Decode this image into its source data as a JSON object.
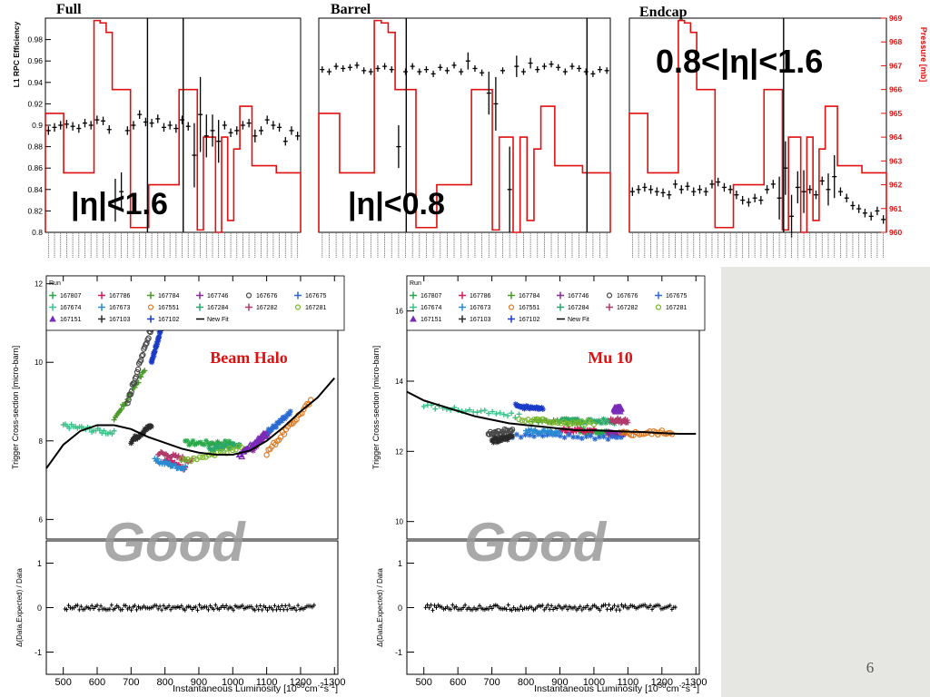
{
  "slide": {
    "page_number": "6",
    "background": "#ffffff",
    "side_panel_color": "#e6e6e2"
  },
  "chart_data": [
    {
      "type": "line",
      "panel": "full",
      "title": "Full",
      "region_label": "|η|<1.6",
      "ylabel": "L1 RPC Efficiency",
      "ylim": [
        0.8,
        1.0
      ],
      "yticks": [
        0.8,
        0.82,
        0.84,
        0.86,
        0.88,
        0.9,
        0.92,
        0.94,
        0.96,
        0.98
      ],
      "pressure_ylim": [
        960,
        969
      ],
      "efficiency": [
        0.895,
        0.898,
        0.9,
        0.901,
        0.899,
        0.897,
        0.902,
        0.9,
        0.905,
        0.904,
        0.896,
        0.83,
        0.838,
        0.895,
        0.9,
        0.91,
        0.903,
        0.902,
        0.906,
        0.898,
        0.9,
        0.897,
        0.905,
        0.899,
        0.872,
        0.91,
        0.89,
        0.895,
        0.885,
        0.9,
        0.893,
        0.895,
        0.9,
        0.902,
        0.89,
        0.895,
        0.905,
        0.9,
        0.898,
        0.885,
        0.895,
        0.89
      ],
      "efficiency_errors": [
        0.004,
        0.004,
        0.004,
        0.004,
        0.004,
        0.004,
        0.004,
        0.004,
        0.004,
        0.004,
        0.004,
        0.02,
        0.018,
        0.004,
        0.004,
        0.004,
        0.004,
        0.004,
        0.004,
        0.004,
        0.004,
        0.004,
        0.004,
        0.004,
        0.03,
        0.035,
        0.02,
        0.015,
        0.02,
        0.004,
        0.004,
        0.004,
        0.004,
        0.004,
        0.006,
        0.004,
        0.004,
        0.004,
        0.004,
        0.004,
        0.004,
        0.004
      ],
      "pressure": [
        965,
        965,
        965,
        962.5,
        962.5,
        962.5,
        962.5,
        962.5,
        968.9,
        968.8,
        968.4,
        966,
        966,
        966,
        960.2,
        960.2,
        960.2,
        962,
        962,
        962,
        962,
        962,
        966,
        966,
        966,
        960.1,
        964,
        964,
        960,
        964,
        960.5,
        963.5,
        965.3,
        965.3,
        962.8,
        962.8,
        962.8,
        962.8,
        962.5,
        962.5,
        962.5,
        962.5
      ],
      "vertical_markers": [
        0.54,
        0.4
      ]
    },
    {
      "type": "line",
      "panel": "barrel",
      "title": "Barrel",
      "region_label": "|η|<0.8",
      "ylim": [
        0.8,
        1.0
      ],
      "pressure_ylim": [
        960,
        969
      ],
      "efficiency": [
        0.952,
        0.95,
        0.955,
        0.953,
        0.954,
        0.956,
        0.951,
        0.95,
        0.953,
        0.955,
        0.952,
        0.88,
        0.95,
        0.955,
        0.95,
        0.952,
        0.948,
        0.954,
        0.951,
        0.956,
        0.95,
        0.96,
        0.953,
        0.949,
        0.93,
        0.92,
        0.951,
        0.84,
        0.955,
        0.95,
        0.958,
        0.952,
        0.955,
        0.957,
        0.954,
        0.95,
        0.955,
        0.953,
        0.95,
        0.948,
        0.952,
        0.951
      ],
      "efficiency_errors": [
        0.003,
        0.003,
        0.003,
        0.003,
        0.003,
        0.003,
        0.003,
        0.003,
        0.003,
        0.003,
        0.003,
        0.02,
        0.003,
        0.003,
        0.003,
        0.003,
        0.003,
        0.003,
        0.003,
        0.003,
        0.003,
        0.008,
        0.003,
        0.003,
        0.02,
        0.025,
        0.003,
        0.04,
        0.01,
        0.003,
        0.005,
        0.003,
        0.003,
        0.003,
        0.003,
        0.003,
        0.003,
        0.003,
        0.003,
        0.003,
        0.003,
        0.003
      ],
      "pressure": [
        965,
        965,
        965,
        962.5,
        962.5,
        962.5,
        962.5,
        962.5,
        968.9,
        968.8,
        968.4,
        966,
        966,
        966,
        960.2,
        960.2,
        960.2,
        962,
        962,
        962,
        962,
        962,
        966,
        966,
        966,
        960.1,
        964,
        964,
        960,
        964,
        960.5,
        963.5,
        965.3,
        965.3,
        962.8,
        962.8,
        962.8,
        962.8,
        962.5,
        962.5,
        962.5,
        962.5
      ],
      "vertical_markers": [
        0.3,
        0.92
      ]
    },
    {
      "type": "line",
      "panel": "endcap",
      "title": "Endcap",
      "region_label": "0.8<|η|<1.6",
      "ylabel_right": "Pressure [mb]",
      "ylim": [
        0.8,
        1.0
      ],
      "pressure_ylim": [
        960,
        969
      ],
      "pressure_ticks": [
        960,
        961,
        962,
        963,
        964,
        965,
        966,
        967,
        968,
        969
      ],
      "efficiency": [
        0.838,
        0.84,
        0.842,
        0.84,
        0.838,
        0.837,
        0.835,
        0.845,
        0.84,
        0.843,
        0.838,
        0.84,
        0.838,
        0.845,
        0.847,
        0.842,
        0.84,
        0.835,
        0.83,
        0.828,
        0.832,
        0.83,
        0.84,
        0.845,
        0.832,
        0.86,
        0.815,
        0.842,
        0.838,
        0.84,
        0.835,
        0.848,
        0.84,
        0.852,
        0.838,
        0.832,
        0.825,
        0.822,
        0.818,
        0.815,
        0.82,
        0.812
      ],
      "efficiency_errors": [
        0.004,
        0.004,
        0.004,
        0.004,
        0.004,
        0.004,
        0.004,
        0.004,
        0.004,
        0.004,
        0.004,
        0.004,
        0.004,
        0.004,
        0.004,
        0.004,
        0.004,
        0.004,
        0.004,
        0.004,
        0.004,
        0.004,
        0.004,
        0.004,
        0.02,
        0.025,
        0.02,
        0.015,
        0.02,
        0.004,
        0.004,
        0.004,
        0.015,
        0.02,
        0.004,
        0.004,
        0.004,
        0.004,
        0.004,
        0.004,
        0.004,
        0.004
      ],
      "pressure": [
        965,
        965,
        965,
        962.5,
        962.5,
        962.5,
        962.5,
        962.5,
        968.9,
        968.8,
        968.4,
        966,
        966,
        966,
        960.2,
        960.2,
        960.2,
        962,
        962,
        962,
        962,
        962,
        966,
        966,
        966,
        960.1,
        964,
        964,
        960,
        964,
        960.5,
        963.5,
        965.3,
        965.3,
        962.8,
        962.8,
        962.8,
        962.8,
        962.5,
        962.5,
        962.5,
        962.5
      ],
      "vertical_markers": [
        0.6
      ]
    },
    {
      "type": "scatter",
      "panel": "beam_halo",
      "title": "Beam Halo",
      "watermark": "Good",
      "ylabel": "Trigger Cross-section [micro-barn]",
      "ylim": [
        5.5,
        12.2
      ],
      "yticks": [
        6,
        8,
        10,
        12
      ],
      "legend_title": "Run",
      "fit_label": "New Fit",
      "fit_curve": [
        [
          450,
          7.3
        ],
        [
          500,
          7.9
        ],
        [
          550,
          8.25
        ],
        [
          600,
          8.4
        ],
        [
          650,
          8.4
        ],
        [
          700,
          8.3
        ],
        [
          750,
          8.1
        ],
        [
          800,
          7.95
        ],
        [
          850,
          7.8
        ],
        [
          900,
          7.7
        ],
        [
          950,
          7.65
        ],
        [
          1000,
          7.65
        ],
        [
          1050,
          7.75
        ],
        [
          1100,
          8.0
        ],
        [
          1150,
          8.35
        ],
        [
          1200,
          8.75
        ],
        [
          1250,
          9.1
        ],
        [
          1300,
          9.6
        ]
      ],
      "ratio_ylabel": "Δ(Data,Expected) / Data",
      "ratio_ylim": [
        -1.5,
        1.5
      ],
      "ratio_yticks": [
        -1,
        0,
        1
      ],
      "xlabel": "Instantaneous Luminosity [10",
      "xlabel_exp": "30",
      "xlabel_unit": "cm",
      "xlabel_unit_exp": "-2",
      "xlabel_tail": "s",
      "xlabel_tail_exp": "-1",
      "xlabel_end": "]",
      "xlim": [
        450,
        1310
      ],
      "xticks": [
        500,
        600,
        700,
        800,
        900,
        1000,
        1100,
        1200,
        1300
      ],
      "series": [
        {
          "name": "167807",
          "color": "#2aa84a",
          "marker": "asterisk",
          "x_range": [
            860,
            1000
          ],
          "y_start": 7.95,
          "y_end": 7.95
        },
        {
          "name": "167786",
          "color": "#d11a5c",
          "marker": "cross",
          "x_range": [
            800,
            860
          ],
          "y_start": 7.5,
          "y_end": 7.3
        },
        {
          "name": "167784",
          "color": "#4a9a2a",
          "marker": "cross",
          "x_range": [
            650,
            740
          ],
          "y_start": 8.5,
          "y_end": 9.8
        },
        {
          "name": "167746",
          "color": "#8a2a9a",
          "marker": "asterisk",
          "x_range": [
            1060,
            1110
          ],
          "y_start": 7.8,
          "y_end": 8.3
        },
        {
          "name": "167676",
          "color": "#4a4a4a",
          "marker": "circle",
          "x_range": [
            690,
            760
          ],
          "y_start": 9.0,
          "y_end": 10.9
        },
        {
          "name": "167675",
          "color": "#2a6ad1",
          "marker": "asterisk",
          "x_range": [
            1100,
            1170
          ],
          "y_start": 8.2,
          "y_end": 8.7
        },
        {
          "name": "167674",
          "color": "#3ac28a",
          "marker": "cross",
          "x_range": [
            500,
            650
          ],
          "y_start": 8.4,
          "y_end": 8.2
        },
        {
          "name": "167673",
          "color": "#2a8ad1",
          "marker": "cross",
          "x_range": [
            770,
            860
          ],
          "y_start": 7.5,
          "y_end": 7.3
        },
        {
          "name": "167551",
          "color": "#e07a20",
          "marker": "circle",
          "x_range": [
            1100,
            1230
          ],
          "y_start": 7.7,
          "y_end": 9.0
        },
        {
          "name": "167284",
          "color": "#2aa86a",
          "marker": "asterisk",
          "x_range": [
            930,
            1020
          ],
          "y_start": 7.8,
          "y_end": 7.9
        },
        {
          "name": "167282",
          "color": "#b03a6a",
          "marker": "cross",
          "x_range": [
            780,
            880
          ],
          "y_start": 7.7,
          "y_end": 7.5
        },
        {
          "name": "167281",
          "color": "#7ab82a",
          "marker": "circle",
          "x_range": [
            850,
            1070
          ],
          "y_start": 7.5,
          "y_end": 7.9
        },
        {
          "name": "167151",
          "color": "#7a2ab8",
          "marker": "triangle",
          "x_range": [
            1020,
            1100
          ],
          "y_start": 7.6,
          "y_end": 8.2
        },
        {
          "name": "167103",
          "color": "#2a2a2a",
          "marker": "asterisk",
          "x_range": [
            700,
            760
          ],
          "y_start": 8.0,
          "y_end": 8.4
        },
        {
          "name": "167102",
          "color": "#1a3ac8",
          "marker": "asterisk",
          "x_range": [
            760,
            790
          ],
          "y_start": 10.0,
          "y_end": 10.9
        }
      ]
    },
    {
      "type": "scatter",
      "panel": "mu10",
      "title": "Mu 10",
      "watermark": "Good",
      "ylabel": "Trigger Cross-section [micro-barn]",
      "ylim": [
        9.5,
        17.0
      ],
      "yticks": [
        10,
        12,
        14,
        16
      ],
      "legend_title": "Run",
      "fit_label": "New Fit",
      "fit_curve": [
        [
          450,
          13.7
        ],
        [
          500,
          13.45
        ],
        [
          550,
          13.3
        ],
        [
          600,
          13.15
        ],
        [
          650,
          13.0
        ],
        [
          700,
          12.9
        ],
        [
          750,
          12.8
        ],
        [
          800,
          12.75
        ],
        [
          850,
          12.7
        ],
        [
          900,
          12.65
        ],
        [
          950,
          12.6
        ],
        [
          1000,
          12.6
        ],
        [
          1050,
          12.58
        ],
        [
          1100,
          12.56
        ],
        [
          1150,
          12.55
        ],
        [
          1200,
          12.52
        ],
        [
          1250,
          12.5
        ],
        [
          1300,
          12.5
        ]
      ],
      "ratio_ylabel": "Δ(Data,Expected) / Data",
      "ratio_ylim": [
        -1.5,
        1.5
      ],
      "ratio_yticks": [
        -1,
        0,
        1
      ],
      "xlabel": "Instantaneous Luminosity [10",
      "xlabel_exp": "30",
      "xlabel_unit": "cm",
      "xlabel_unit_exp": "-2",
      "xlabel_tail": "s",
      "xlabel_tail_exp": "-1",
      "xlabel_end": "]",
      "xlim": [
        450,
        1310
      ],
      "xticks": [
        500,
        600,
        700,
        800,
        900,
        1000,
        1100,
        1200,
        1300
      ],
      "series": [
        {
          "name": "167807",
          "color": "#2aa84a",
          "marker": "asterisk",
          "x_range": [
            960,
            1080
          ],
          "y_start": 12.6,
          "y_end": 12.5
        },
        {
          "name": "167786",
          "color": "#d11a5c",
          "marker": "cross",
          "x_range": [
            900,
            1000
          ],
          "y_start": 12.6,
          "y_end": 12.6
        },
        {
          "name": "167784",
          "color": "#4a9a2a",
          "marker": "cross",
          "x_range": [
            820,
            960
          ],
          "y_start": 12.9,
          "y_end": 12.8
        },
        {
          "name": "167746",
          "color": "#8a2a9a",
          "marker": "asterisk",
          "x_range": [
            1040,
            1090
          ],
          "y_start": 12.5,
          "y_end": 12.5
        },
        {
          "name": "167676",
          "color": "#4a4a4a",
          "marker": "circle",
          "x_range": [
            690,
            760
          ],
          "y_start": 12.5,
          "y_end": 12.6
        },
        {
          "name": "167675",
          "color": "#2a6ad1",
          "marker": "asterisk",
          "x_range": [
            760,
            1080
          ],
          "y_start": 12.45,
          "y_end": 12.4
        },
        {
          "name": "167674",
          "color": "#3ac28a",
          "marker": "cross",
          "x_range": [
            500,
            780
          ],
          "y_start": 13.3,
          "y_end": 13.0
        },
        {
          "name": "167673",
          "color": "#2a8ad1",
          "marker": "cross",
          "x_range": [
            800,
            900
          ],
          "y_start": 12.6,
          "y_end": 12.5
        },
        {
          "name": "167551",
          "color": "#e07a20",
          "marker": "circle",
          "x_range": [
            1080,
            1230
          ],
          "y_start": 12.5,
          "y_end": 12.55
        },
        {
          "name": "167284",
          "color": "#2aa86a",
          "marker": "asterisk",
          "x_range": [
            900,
            1060
          ],
          "y_start": 12.9,
          "y_end": 12.85
        },
        {
          "name": "167282",
          "color": "#b03a6a",
          "marker": "cross",
          "x_range": [
            1050,
            1100
          ],
          "y_start": 12.9,
          "y_end": 12.85
        },
        {
          "name": "167281",
          "color": "#7ab82a",
          "marker": "circle",
          "x_range": [
            780,
            1000
          ],
          "y_start": 12.9,
          "y_end": 12.8
        },
        {
          "name": "167151",
          "color": "#7a2ab8",
          "marker": "triangle",
          "x_range": [
            1060,
            1080
          ],
          "y_start": 13.2,
          "y_end": 13.2
        },
        {
          "name": "167103",
          "color": "#2a2a2a",
          "marker": "asterisk",
          "x_range": [
            700,
            760
          ],
          "y_start": 12.3,
          "y_end": 12.4
        },
        {
          "name": "167102",
          "color": "#1a3ac8",
          "marker": "asterisk",
          "x_range": [
            770,
            850
          ],
          "y_start": 13.3,
          "y_end": 13.2
        }
      ]
    }
  ]
}
